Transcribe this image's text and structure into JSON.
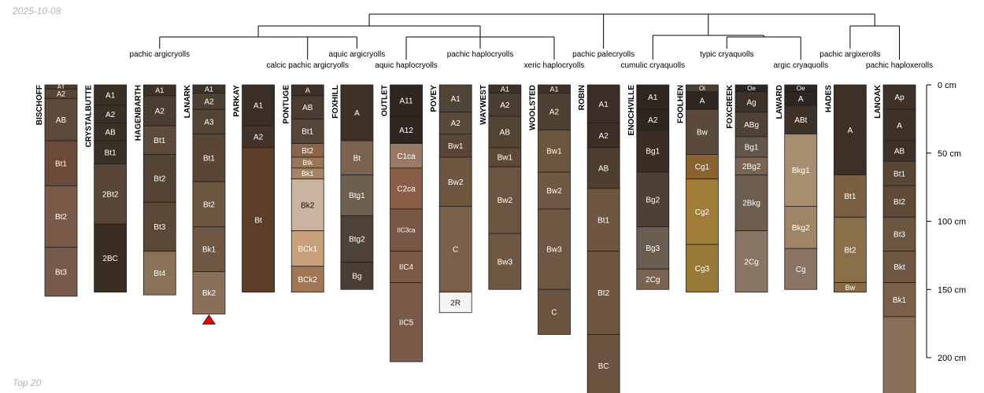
{
  "date": "2025-10-08",
  "footer": "Top 20",
  "depth_axis": {
    "unit": "cm",
    "ticks": [
      0,
      50,
      100,
      150,
      200
    ]
  },
  "taxa": [
    {
      "name": "pachic argicryolls",
      "span": [
        "BISCHOFF",
        "PARKAY"
      ]
    },
    {
      "name": "calcic pachic argicryolls",
      "span": [
        "PONTUGE",
        "PONTUGE"
      ]
    },
    {
      "name": "aquic argicryolls",
      "span": [
        "FOXHILL",
        "FOXHILL"
      ]
    },
    {
      "name": "aquic haplocryolls",
      "span": [
        "OUTLET",
        "OUTLET"
      ]
    },
    {
      "name": "pachic haplocryolls",
      "span": [
        "POVEY",
        "WAYWEST"
      ]
    },
    {
      "name": "xeric haplocryolls",
      "span": [
        "WOOLSTED",
        "WOOLSTED"
      ]
    },
    {
      "name": "pachic palecryolls",
      "span": [
        "ROBIN",
        "ROBIN"
      ]
    },
    {
      "name": "cumulic cryaquolls",
      "span": [
        "ENOCHVILLE",
        "ENOCHVILLE"
      ]
    },
    {
      "name": "typic cryaquolls",
      "span": [
        "FOOLHEN",
        "FOXCREEK"
      ]
    },
    {
      "name": "argic cryaquolls",
      "span": [
        "LAWARD",
        "LAWARD"
      ]
    },
    {
      "name": "pachic argixerolls",
      "span": [
        "HADES",
        "HADES"
      ]
    },
    {
      "name": "pachic haploxerolls",
      "span": [
        "LANOAK",
        "LANOAK"
      ]
    }
  ],
  "profiles": [
    {
      "name": "BISCHOFF",
      "horizons": [
        {
          "name": "A1",
          "top": 0,
          "bottom": 3,
          "color": "#4a3c30"
        },
        {
          "name": "A2",
          "top": 3,
          "bottom": 10,
          "color": "#574535"
        },
        {
          "name": "AB",
          "top": 10,
          "bottom": 41,
          "color": "#5e4a3a"
        },
        {
          "name": "Bt1",
          "top": 41,
          "bottom": 74,
          "color": "#6b4a38"
        },
        {
          "name": "Bt2",
          "top": 74,
          "bottom": 119,
          "color": "#7a5a48"
        },
        {
          "name": "Bt3",
          "top": 119,
          "bottom": 155,
          "color": "#785a4a"
        }
      ]
    },
    {
      "name": "CRYSTALBUTTE",
      "horizons": [
        {
          "name": "A1",
          "top": 0,
          "bottom": 15,
          "color": "#3a3026"
        },
        {
          "name": "A2",
          "top": 15,
          "bottom": 28,
          "color": "#3a3026"
        },
        {
          "name": "AB",
          "top": 28,
          "bottom": 41,
          "color": "#3a3026"
        },
        {
          "name": "Bt1",
          "top": 41,
          "bottom": 58,
          "color": "#3a3026"
        },
        {
          "name": "2Bt2",
          "top": 58,
          "bottom": 102,
          "color": "#574636"
        },
        {
          "name": "2BC",
          "top": 102,
          "bottom": 152,
          "color": "#3a2e22"
        }
      ]
    },
    {
      "name": "HAGENBARTH",
      "horizons": [
        {
          "name": "A1",
          "top": 0,
          "bottom": 8,
          "color": "#3e3228"
        },
        {
          "name": "A2",
          "top": 8,
          "bottom": 30,
          "color": "#4a3e32"
        },
        {
          "name": "Bt1",
          "top": 30,
          "bottom": 51,
          "color": "#5c4a3a"
        },
        {
          "name": "Bt2",
          "top": 51,
          "bottom": 86,
          "color": "#544434"
        },
        {
          "name": "Bt3",
          "top": 86,
          "bottom": 122,
          "color": "#5a4836"
        },
        {
          "name": "Bt4",
          "top": 122,
          "bottom": 154,
          "color": "#8a7256"
        }
      ]
    },
    {
      "name": "LANARK",
      "horizons": [
        {
          "name": "A1",
          "top": 0,
          "bottom": 6,
          "color": "#3e3228"
        },
        {
          "name": "A2",
          "top": 6,
          "bottom": 18,
          "color": "#4e4032"
        },
        {
          "name": "A3",
          "top": 18,
          "bottom": 36,
          "color": "#544434"
        },
        {
          "name": "Bt1",
          "top": 36,
          "bottom": 71,
          "color": "#5a4634"
        },
        {
          "name": "Bt2",
          "top": 71,
          "bottom": 104,
          "color": "#6b5640"
        },
        {
          "name": "Bk1",
          "top": 104,
          "bottom": 137,
          "color": "#6e5844"
        },
        {
          "name": "Bk2",
          "top": 137,
          "bottom": 168,
          "color": "#8a7058"
        }
      ]
    },
    {
      "name": "PARKAY",
      "horizons": [
        {
          "name": "A1",
          "top": 0,
          "bottom": 30,
          "color": "#3a2e26"
        },
        {
          "name": "A2",
          "top": 30,
          "bottom": 46,
          "color": "#42342a"
        },
        {
          "name": "Bt",
          "top": 46,
          "bottom": 152,
          "color": "#5c3e28"
        }
      ]
    },
    {
      "name": "PONTUGE",
      "horizons": [
        {
          "name": "A",
          "top": 0,
          "bottom": 8,
          "color": "#3e3228"
        },
        {
          "name": "AB",
          "top": 8,
          "bottom": 25,
          "color": "#4a3c30"
        },
        {
          "name": "Bt1",
          "top": 25,
          "bottom": 43,
          "color": "#56463a"
        },
        {
          "name": "Bt2",
          "top": 43,
          "bottom": 53,
          "color": "#8a6448"
        },
        {
          "name": "Btk",
          "top": 53,
          "bottom": 61,
          "color": "#9a7658"
        },
        {
          "name": "Bk1",
          "top": 61,
          "bottom": 69,
          "color": "#a48466"
        },
        {
          "name": "Bk2",
          "top": 69,
          "bottom": 107,
          "color": "#c8b4a0"
        },
        {
          "name": "BCk1",
          "top": 107,
          "bottom": 133,
          "color": "#c8a07a"
        },
        {
          "name": "BCk2",
          "top": 133,
          "bottom": 152,
          "color": "#a07656"
        }
      ]
    },
    {
      "name": "FOXHILL",
      "horizons": [
        {
          "name": "A",
          "top": 0,
          "bottom": 41,
          "color": "#3e3024"
        },
        {
          "name": "Bt",
          "top": 41,
          "bottom": 66,
          "color": "#7a6450"
        },
        {
          "name": "Btg1",
          "top": 66,
          "bottom": 96,
          "color": "#6e6050"
        },
        {
          "name": "Btg2",
          "top": 96,
          "bottom": 130,
          "color": "#4e4238"
        },
        {
          "name": "Bg",
          "top": 130,
          "bottom": 150,
          "color": "#4a3e34"
        }
      ]
    },
    {
      "name": "OUTLET",
      "horizons": [
        {
          "name": "A11",
          "top": 0,
          "bottom": 23,
          "color": "#2e2620"
        },
        {
          "name": "A12",
          "top": 23,
          "bottom": 43,
          "color": "#2e2620"
        },
        {
          "name": "C1ca",
          "top": 43,
          "bottom": 61,
          "color": "#9a7a66"
        },
        {
          "name": "C2ca",
          "top": 61,
          "bottom": 91,
          "color": "#8a5e46"
        },
        {
          "name": "IIC3ca",
          "top": 91,
          "bottom": 122,
          "color": "#7a5848"
        },
        {
          "name": "IIC4",
          "top": 122,
          "bottom": 145,
          "color": "#7a5a44"
        },
        {
          "name": "IIC5",
          "top": 145,
          "bottom": 203,
          "color": "#7a5a48"
        }
      ]
    },
    {
      "name": "POVEY",
      "horizons": [
        {
          "name": "A1",
          "top": 0,
          "bottom": 20,
          "color": "#504436"
        },
        {
          "name": "A2",
          "top": 20,
          "bottom": 36,
          "color": "#5a4a3a"
        },
        {
          "name": "Bw1",
          "top": 36,
          "bottom": 53,
          "color": "#5a4636"
        },
        {
          "name": "Bw2",
          "top": 53,
          "bottom": 89,
          "color": "#6e5640"
        },
        {
          "name": "C",
          "top": 89,
          "bottom": 152,
          "color": "#7a6048"
        },
        {
          "name": "2R",
          "top": 152,
          "bottom": 167,
          "color": "#f4f4f4"
        }
      ]
    },
    {
      "name": "WAYWEST",
      "horizons": [
        {
          "name": "A1",
          "top": 0,
          "bottom": 6,
          "color": "#3e3228"
        },
        {
          "name": "A2",
          "top": 6,
          "bottom": 23,
          "color": "#4a3e32"
        },
        {
          "name": "AB",
          "top": 23,
          "bottom": 46,
          "color": "#544434"
        },
        {
          "name": "Bw1",
          "top": 46,
          "bottom": 60,
          "color": "#5e4a34"
        },
        {
          "name": "Bw2",
          "top": 60,
          "bottom": 109,
          "color": "#6b5440"
        },
        {
          "name": "Bw3",
          "top": 109,
          "bottom": 150,
          "color": "#6e5842"
        }
      ]
    },
    {
      "name": "WOOLSTED",
      "horizons": [
        {
          "name": "A1",
          "top": 0,
          "bottom": 6,
          "color": "#3e3228"
        },
        {
          "name": "A2",
          "top": 6,
          "bottom": 33,
          "color": "#4e4032"
        },
        {
          "name": "Bw1",
          "top": 33,
          "bottom": 64,
          "color": "#6b5640"
        },
        {
          "name": "Bw2",
          "top": 64,
          "bottom": 91,
          "color": "#6e5844"
        },
        {
          "name": "Bw3",
          "top": 91,
          "bottom": 150,
          "color": "#6e5844"
        },
        {
          "name": "C",
          "top": 150,
          "bottom": 183,
          "color": "#6a5440"
        }
      ]
    },
    {
      "name": "ROBIN",
      "horizons": [
        {
          "name": "A1",
          "top": 0,
          "bottom": 28,
          "color": "#3a2e26"
        },
        {
          "name": "A2",
          "top": 28,
          "bottom": 46,
          "color": "#3a2e26"
        },
        {
          "name": "AB",
          "top": 46,
          "bottom": 76,
          "color": "#4e3e30"
        },
        {
          "name": "Bt1",
          "top": 76,
          "bottom": 122,
          "color": "#6e5640"
        },
        {
          "name": "Bt2",
          "top": 122,
          "bottom": 183,
          "color": "#6e5640"
        },
        {
          "name": "BC",
          "top": 183,
          "bottom": 229,
          "color": "#6a5440"
        }
      ]
    },
    {
      "name": "ENOCHVILLE",
      "horizons": [
        {
          "name": "A1",
          "top": 0,
          "bottom": 18,
          "color": "#2e2620"
        },
        {
          "name": "A2",
          "top": 18,
          "bottom": 33,
          "color": "#2e2620"
        },
        {
          "name": "Bg1",
          "top": 33,
          "bottom": 64,
          "color": "#3a2e24"
        },
        {
          "name": "Bg2",
          "top": 64,
          "bottom": 104,
          "color": "#4e4034"
        },
        {
          "name": "Bg3",
          "top": 104,
          "bottom": 135,
          "color": "#6a5e50"
        },
        {
          "name": "2Cg",
          "top": 135,
          "bottom": 150,
          "color": "#7a6450"
        }
      ]
    },
    {
      "name": "FOOLHEN",
      "horizons": [
        {
          "name": "Oi",
          "top": 0,
          "bottom": 5,
          "color": "#4a3e30"
        },
        {
          "name": "A",
          "top": 5,
          "bottom": 18,
          "color": "#2e2620"
        },
        {
          "name": "Bw",
          "top": 18,
          "bottom": 51,
          "color": "#5a4a3a"
        },
        {
          "name": "Cg1",
          "top": 51,
          "bottom": 69,
          "color": "#8a6430"
        },
        {
          "name": "Cg2",
          "top": 69,
          "bottom": 117,
          "color": "#a07e38"
        },
        {
          "name": "Cg3",
          "top": 117,
          "bottom": 152,
          "color": "#9a7a38"
        }
      ]
    },
    {
      "name": "FOXCREEK",
      "horizons": [
        {
          "name": "Oe",
          "top": 0,
          "bottom": 5,
          "color": "#2e2620"
        },
        {
          "name": "Ag",
          "top": 5,
          "bottom": 20,
          "color": "#3e3228"
        },
        {
          "name": "ABg",
          "top": 20,
          "bottom": 38,
          "color": "#4e4236"
        },
        {
          "name": "Bg1",
          "top": 38,
          "bottom": 53,
          "color": "#625648"
        },
        {
          "name": "2Bg2",
          "top": 53,
          "bottom": 66,
          "color": "#7a6450"
        },
        {
          "name": "2Bkg",
          "top": 66,
          "bottom": 107,
          "color": "#6e5e50"
        },
        {
          "name": "2Cg",
          "top": 107,
          "bottom": 152,
          "color": "#8a7664"
        }
      ]
    },
    {
      "name": "LAWARD",
      "horizons": [
        {
          "name": "Oe",
          "top": 0,
          "bottom": 5,
          "color": "#2e2620"
        },
        {
          "name": "A",
          "top": 5,
          "bottom": 15,
          "color": "#2e2620"
        },
        {
          "name": "ABt",
          "top": 15,
          "bottom": 36,
          "color": "#3e3228"
        },
        {
          "name": "Bkg1",
          "top": 36,
          "bottom": 89,
          "color": "#a88e70"
        },
        {
          "name": "Bkg2",
          "top": 89,
          "bottom": 120,
          "color": "#a08466"
        },
        {
          "name": "Cg",
          "top": 120,
          "bottom": 150,
          "color": "#8a7464"
        }
      ]
    },
    {
      "name": "HADES",
      "horizons": [
        {
          "name": "A",
          "top": 0,
          "bottom": 66,
          "color": "#3e3024"
        },
        {
          "name": "Bt1",
          "top": 66,
          "bottom": 97,
          "color": "#7a6040"
        },
        {
          "name": "Bt2",
          "top": 97,
          "bottom": 145,
          "color": "#8a7048"
        },
        {
          "name": "Bw",
          "top": 145,
          "bottom": 152,
          "color": "#8a6c44"
        }
      ]
    },
    {
      "name": "LANOAK",
      "horizons": [
        {
          "name": "Ap",
          "top": 0,
          "bottom": 18,
          "color": "#3e3228"
        },
        {
          "name": "A",
          "top": 18,
          "bottom": 41,
          "color": "#3e3228"
        },
        {
          "name": "AB",
          "top": 41,
          "bottom": 56,
          "color": "#3e3228"
        },
        {
          "name": "Bt1",
          "top": 56,
          "bottom": 74,
          "color": "#5a4634"
        },
        {
          "name": "Bt2",
          "top": 74,
          "bottom": 97,
          "color": "#5e4a36"
        },
        {
          "name": "Bt3",
          "top": 97,
          "bottom": 122,
          "color": "#6b5640"
        },
        {
          "name": "Bkt",
          "top": 122,
          "bottom": 145,
          "color": "#6e5844"
        },
        {
          "name": "Bk1",
          "top": 145,
          "bottom": 170,
          "color": "#7a6048"
        },
        {
          "name": "",
          "top": 170,
          "bottom": 229,
          "color": "#8a7058"
        }
      ]
    }
  ]
}
